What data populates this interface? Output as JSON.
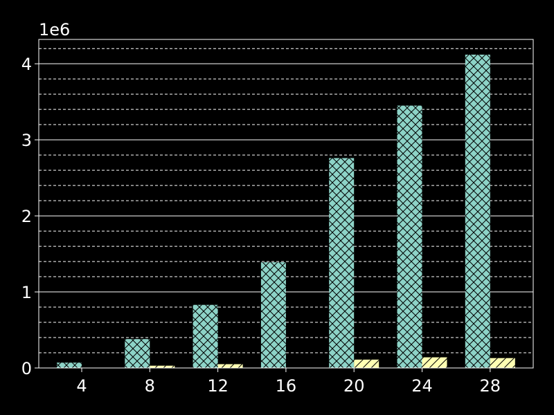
{
  "chart_data": {
    "type": "bar",
    "categories": [
      "4",
      "8",
      "12",
      "16",
      "20",
      "24",
      "28"
    ],
    "series": [
      {
        "values": [
          70000,
          380000,
          830000,
          1390000,
          2760000,
          3450000,
          4120000
        ],
        "color": "#8dd3c7",
        "hatch": "cross"
      },
      {
        "values": [
          3000,
          30000,
          50000,
          0,
          110000,
          140000,
          130000
        ],
        "color": "#ffffb3",
        "hatch": "diagonal"
      }
    ],
    "ylim": [
      0,
      4320000
    ],
    "yticks": [
      0,
      1,
      2,
      3,
      4
    ],
    "y_offset_label": "1e6",
    "grid": {
      "major": "solid",
      "minor": "dashed",
      "axis": "y"
    },
    "title": "",
    "xlabel": "",
    "ylabel": ""
  }
}
